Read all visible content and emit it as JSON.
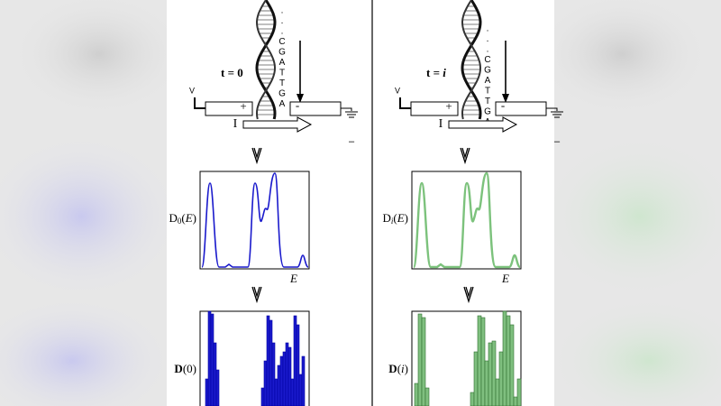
{
  "panels": [
    {
      "time_label": [
        "t = 0"
      ],
      "sequence": [
        ".",
        ".",
        ".",
        "C",
        "G",
        "A",
        "T",
        "T",
        "G",
        "A"
      ],
      "voltage": "V",
      "plus": "+",
      "minus": "-",
      "current": "I",
      "sign": "–",
      "spectrum_label": [
        "D",
        "0",
        "(",
        "E",
        ")"
      ],
      "energy": "E",
      "histogram_label": [
        "D",
        "(",
        "0",
        ")"
      ]
    },
    {
      "time_label": [
        "t = ",
        "i"
      ],
      "sequence": [
        ".",
        ".",
        ".",
        "C",
        "G",
        "A",
        "T",
        "T",
        "G",
        "A"
      ],
      "voltage": "V",
      "plus": "+",
      "minus": "-",
      "current": "I",
      "sign": "–",
      "spectrum_label": [
        "D",
        "i",
        "(",
        "E",
        ")"
      ],
      "energy": "E",
      "histogram_label": [
        "D",
        "(",
        "i",
        ")"
      ]
    }
  ]
}
